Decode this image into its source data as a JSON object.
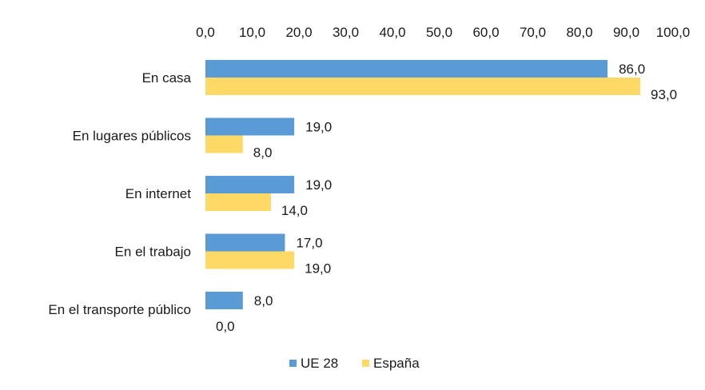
{
  "chart_data": {
    "type": "bar",
    "orientation": "horizontal",
    "title": "",
    "xlabel": "",
    "ylabel": "",
    "xlim": [
      0,
      100
    ],
    "x_ticks": [
      "0,0",
      "10,0",
      "20,0",
      "30,0",
      "40,0",
      "50,0",
      "60,0",
      "70,0",
      "80,0",
      "90,0",
      "100,0"
    ],
    "x_axis_position": "top",
    "grid": false,
    "categories": [
      "En casa",
      "En lugares públicos",
      "En internet",
      "En el trabajo",
      "En el transporte público"
    ],
    "series": [
      {
        "name": "UE 28",
        "color": "#5b9bd5",
        "values": [
          86.0,
          19.0,
          19.0,
          17.0,
          8.0
        ],
        "labels": [
          "86,0",
          "19,0",
          "19,0",
          "17,0",
          "8,0"
        ]
      },
      {
        "name": "España",
        "color": "#ffd966",
        "values": [
          93.0,
          8.0,
          14.0,
          19.0,
          0.0
        ],
        "labels": [
          "93,0",
          "8,0",
          "14,0",
          "19,0",
          "0,0"
        ]
      }
    ],
    "legend_position": "bottom"
  }
}
